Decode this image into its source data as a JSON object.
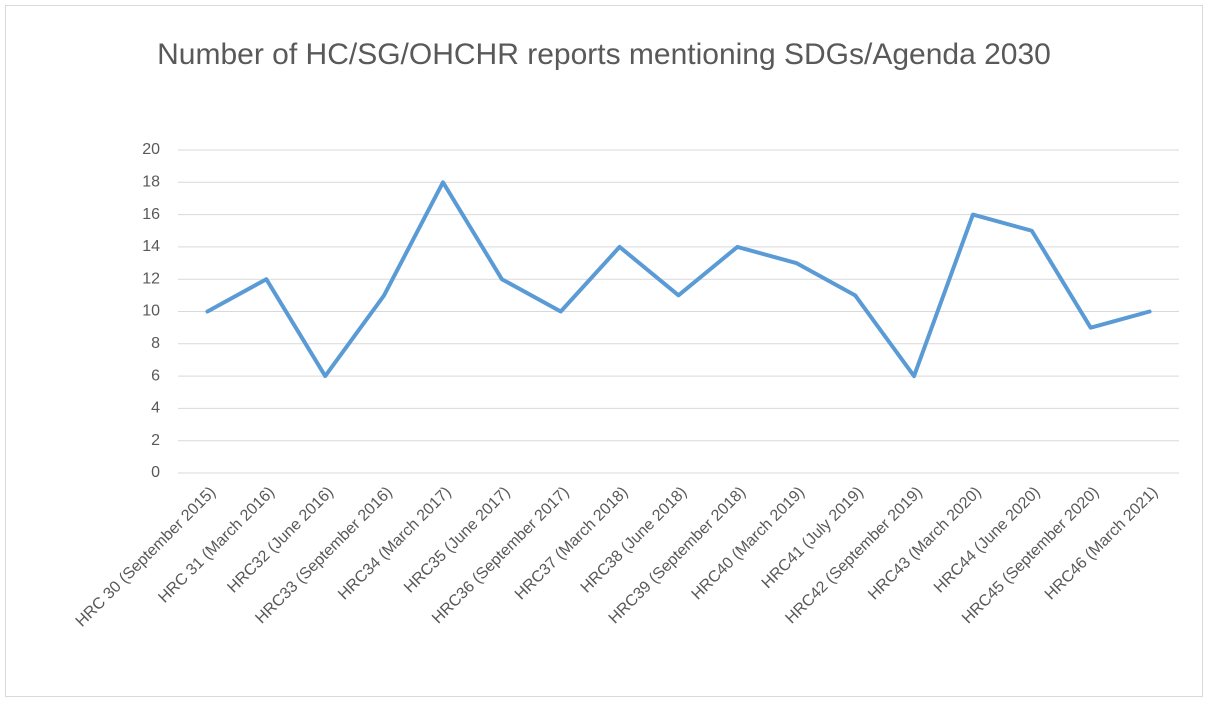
{
  "chart_data": {
    "type": "line",
    "title": "Number of HC/SG/OHCHR reports mentioning SDGs/Agenda 2030",
    "categories": [
      "HRC 30 (September 2015)",
      "HRC 31 (March 2016)",
      "HRC32 (June 2016)",
      "HRC33 (September 2016)",
      "HRC34 (March 2017)",
      "HRC35 (June 2017)",
      "HRC36 (September 2017)",
      "HRC37 (March 2018)",
      "HRC38 (June 2018)",
      "HRC39 (September 2018)",
      "HRC40 (March 2019)",
      "HRC41 (July 2019)",
      "HRC42 (September 2019)",
      "HRC43 (March 2020)",
      "HRC44 (June 2020)",
      "HRC45 (September 2020)",
      "HRC46 (March 2021)"
    ],
    "values": [
      10,
      12,
      6,
      11,
      18,
      12,
      10,
      14,
      11,
      14,
      13,
      11,
      6,
      16,
      15,
      9,
      10
    ],
    "color": "#5b9bd5",
    "ylim": [
      0,
      20
    ],
    "yticks": [
      0,
      2,
      4,
      6,
      8,
      10,
      12,
      14,
      16,
      18,
      20
    ],
    "grid": true
  }
}
